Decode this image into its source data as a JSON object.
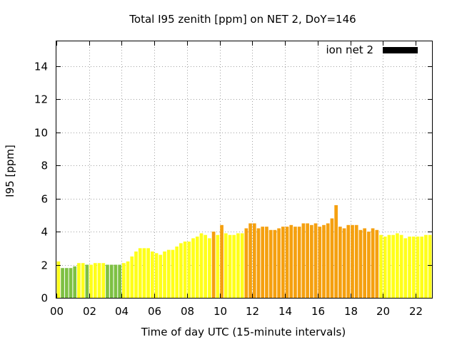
{
  "chart_data": {
    "type": "bar",
    "title": "Total I95 zenith [ppm] on NET 2, DoY=146",
    "xlabel": "Time of day UTC (15-minute intervals)",
    "ylabel": "I95 [ppm]",
    "legend": {
      "label": "ion net 2",
      "color": "#000000",
      "position": "top-right"
    },
    "xlim": [
      0,
      23
    ],
    "ylim": [
      0,
      15.5
    ],
    "bar_interval_hours": 0.25,
    "x_ticks": [
      "00",
      "02",
      "04",
      "06",
      "08",
      "10",
      "12",
      "14",
      "16",
      "18",
      "20",
      "22"
    ],
    "y_ticks": [
      "0",
      "2",
      "4",
      "6",
      "8",
      "10",
      "12",
      "14"
    ],
    "grid": true,
    "color_scale": {
      "green": "#7dc043",
      "yellow": "#ffff1a",
      "orange": "#f5a00f"
    },
    "series": [
      {
        "values": [
          2.2,
          1.8,
          1.8,
          1.8,
          1.9,
          2.1,
          2.1,
          2.0,
          2.0,
          2.1,
          2.1,
          2.1,
          2.0,
          2.0,
          2.0,
          2.0,
          2.1,
          2.2,
          2.5,
          2.8,
          3.0,
          3.0,
          3.0,
          2.8,
          2.7,
          2.6,
          2.8,
          2.9,
          2.9,
          3.1,
          3.3,
          3.4,
          3.4,
          3.6,
          3.7,
          3.9,
          3.8,
          3.6,
          4.0,
          3.8,
          4.4,
          3.9,
          3.8,
          3.8,
          3.9,
          3.9,
          4.2,
          4.5,
          4.5,
          4.2,
          4.3,
          4.3,
          4.1,
          4.1,
          4.2,
          4.3,
          4.3,
          4.4,
          4.3,
          4.3,
          4.5,
          4.5,
          4.4,
          4.5,
          4.3,
          4.4,
          4.5,
          4.8,
          5.6,
          4.3,
          4.2,
          4.4,
          4.4,
          4.4,
          4.1,
          4.2,
          4.0,
          4.2,
          4.1,
          3.8,
          3.7,
          3.8,
          3.8,
          3.9,
          3.8,
          3.6,
          3.7,
          3.7,
          3.7,
          3.7,
          3.8,
          3.8
        ],
        "colors": [
          "yellow",
          "green",
          "green",
          "green",
          "green",
          "yellow",
          "yellow",
          "green",
          "yellow",
          "yellow",
          "yellow",
          "yellow",
          "green",
          "green",
          "green",
          "green",
          "yellow",
          "yellow",
          "yellow",
          "yellow",
          "yellow",
          "yellow",
          "yellow",
          "yellow",
          "yellow",
          "yellow",
          "yellow",
          "yellow",
          "yellow",
          "yellow",
          "yellow",
          "yellow",
          "yellow",
          "yellow",
          "yellow",
          "yellow",
          "yellow",
          "yellow",
          "orange",
          "yellow",
          "orange",
          "yellow",
          "yellow",
          "yellow",
          "yellow",
          "yellow",
          "orange",
          "orange",
          "orange",
          "orange",
          "orange",
          "orange",
          "orange",
          "orange",
          "orange",
          "orange",
          "orange",
          "orange",
          "orange",
          "orange",
          "orange",
          "orange",
          "orange",
          "orange",
          "orange",
          "orange",
          "orange",
          "orange",
          "orange",
          "orange",
          "orange",
          "orange",
          "orange",
          "orange",
          "orange",
          "orange",
          "orange",
          "orange",
          "orange",
          "yellow",
          "yellow",
          "yellow",
          "yellow",
          "yellow",
          "yellow",
          "yellow",
          "yellow",
          "yellow",
          "yellow",
          "yellow",
          "yellow",
          "yellow"
        ]
      }
    ]
  }
}
